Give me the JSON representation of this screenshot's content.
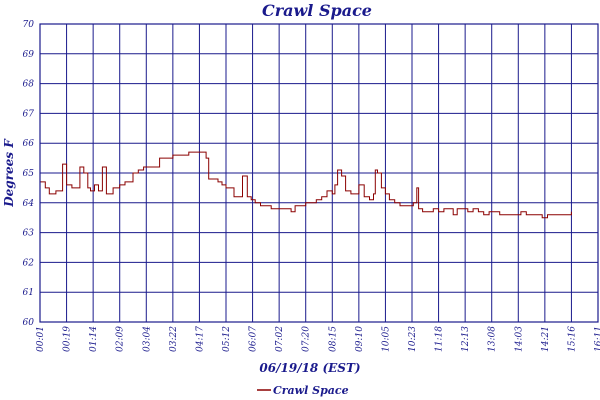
{
  "chart_data": {
    "type": "line",
    "title": "Crawl Space",
    "xlabel": "06/19/18 (EST)",
    "ylabel": "Degrees F",
    "ylim": [
      60,
      70
    ],
    "yticks": [
      "60",
      "61",
      "62",
      "63",
      "64",
      "65",
      "66",
      "67",
      "68",
      "69",
      "70"
    ],
    "xticks": [
      "00:01",
      "00:19",
      "01:14",
      "02:09",
      "03:04",
      "03:22",
      "04:17",
      "05:12",
      "06:07",
      "07:02",
      "07:20",
      "08:15",
      "09:10",
      "10:05",
      "10:23",
      "11:18",
      "12:13",
      "13:08",
      "14:03",
      "14:21",
      "15:16",
      "16:11"
    ],
    "grid": true,
    "legend_position": "bottom",
    "series": [
      {
        "name": "Crawl Space",
        "color": "#8b0000",
        "points": [
          [
            0.0,
            64.7
          ],
          [
            0.2,
            64.5
          ],
          [
            0.35,
            64.3
          ],
          [
            0.5,
            64.3
          ],
          [
            0.6,
            64.4
          ],
          [
            0.7,
            64.4
          ],
          [
            0.85,
            65.3
          ],
          [
            1.0,
            64.6
          ],
          [
            1.2,
            64.5
          ],
          [
            1.35,
            64.5
          ],
          [
            1.5,
            65.2
          ],
          [
            1.65,
            65.0
          ],
          [
            1.8,
            64.5
          ],
          [
            1.9,
            64.4
          ],
          [
            2.05,
            64.6
          ],
          [
            2.2,
            64.4
          ],
          [
            2.35,
            65.2
          ],
          [
            2.5,
            64.3
          ],
          [
            2.6,
            64.3
          ],
          [
            2.75,
            64.5
          ],
          [
            2.9,
            64.5
          ],
          [
            3.0,
            64.6
          ],
          [
            3.2,
            64.7
          ],
          [
            3.35,
            64.7
          ],
          [
            3.5,
            65.0
          ],
          [
            3.7,
            65.1
          ],
          [
            3.9,
            65.2
          ],
          [
            4.1,
            65.2
          ],
          [
            4.3,
            65.2
          ],
          [
            4.5,
            65.5
          ],
          [
            4.8,
            65.5
          ],
          [
            5.0,
            65.6
          ],
          [
            5.2,
            65.6
          ],
          [
            5.4,
            65.6
          ],
          [
            5.6,
            65.7
          ],
          [
            5.8,
            65.7
          ],
          [
            6.0,
            65.7
          ],
          [
            6.15,
            65.7
          ],
          [
            6.25,
            65.5
          ],
          [
            6.35,
            64.8
          ],
          [
            6.55,
            64.8
          ],
          [
            6.7,
            64.7
          ],
          [
            6.85,
            64.6
          ],
          [
            7.0,
            64.5
          ],
          [
            7.15,
            64.5
          ],
          [
            7.3,
            64.2
          ],
          [
            7.5,
            64.2
          ],
          [
            7.62,
            64.9
          ],
          [
            7.8,
            64.2
          ],
          [
            7.95,
            64.1
          ],
          [
            8.1,
            64.0
          ],
          [
            8.3,
            63.9
          ],
          [
            8.5,
            63.9
          ],
          [
            8.7,
            63.8
          ],
          [
            8.9,
            63.8
          ],
          [
            9.1,
            63.8
          ],
          [
            9.3,
            63.8
          ],
          [
            9.45,
            63.7
          ],
          [
            9.6,
            63.9
          ],
          [
            9.8,
            63.9
          ],
          [
            10.0,
            64.0
          ],
          [
            10.2,
            64.0
          ],
          [
            10.4,
            64.1
          ],
          [
            10.6,
            64.2
          ],
          [
            10.8,
            64.4
          ],
          [
            11.0,
            64.3
          ],
          [
            11.1,
            64.6
          ],
          [
            11.2,
            65.1
          ],
          [
            11.35,
            64.9
          ],
          [
            11.5,
            64.4
          ],
          [
            11.7,
            64.3
          ],
          [
            11.9,
            64.3
          ],
          [
            12.0,
            64.6
          ],
          [
            12.2,
            64.2
          ],
          [
            12.4,
            64.1
          ],
          [
            12.55,
            64.3
          ],
          [
            12.62,
            65.1
          ],
          [
            12.7,
            65.0
          ],
          [
            12.85,
            64.5
          ],
          [
            13.0,
            64.3
          ],
          [
            13.15,
            64.1
          ],
          [
            13.35,
            64.0
          ],
          [
            13.55,
            63.9
          ],
          [
            13.75,
            63.9
          ],
          [
            13.9,
            63.9
          ],
          [
            14.05,
            64.0
          ],
          [
            14.18,
            64.5
          ],
          [
            14.25,
            63.8
          ],
          [
            14.4,
            63.7
          ],
          [
            14.6,
            63.7
          ],
          [
            14.8,
            63.8
          ],
          [
            15.0,
            63.7
          ],
          [
            15.2,
            63.8
          ],
          [
            15.4,
            63.8
          ],
          [
            15.55,
            63.6
          ],
          [
            15.7,
            63.8
          ],
          [
            15.9,
            63.8
          ],
          [
            16.1,
            63.7
          ],
          [
            16.3,
            63.8
          ],
          [
            16.5,
            63.7
          ],
          [
            16.7,
            63.6
          ],
          [
            16.9,
            63.7
          ],
          [
            17.1,
            63.7
          ],
          [
            17.3,
            63.6
          ],
          [
            17.5,
            63.6
          ],
          [
            17.7,
            63.6
          ],
          [
            17.9,
            63.6
          ],
          [
            18.1,
            63.7
          ],
          [
            18.3,
            63.6
          ],
          [
            18.5,
            63.6
          ],
          [
            18.7,
            63.6
          ],
          [
            18.9,
            63.5
          ],
          [
            19.1,
            63.6
          ],
          [
            19.3,
            63.6
          ],
          [
            19.5,
            63.6
          ],
          [
            19.7,
            63.6
          ],
          [
            19.9,
            63.6
          ],
          [
            20.0,
            63.7
          ]
        ]
      }
    ]
  }
}
